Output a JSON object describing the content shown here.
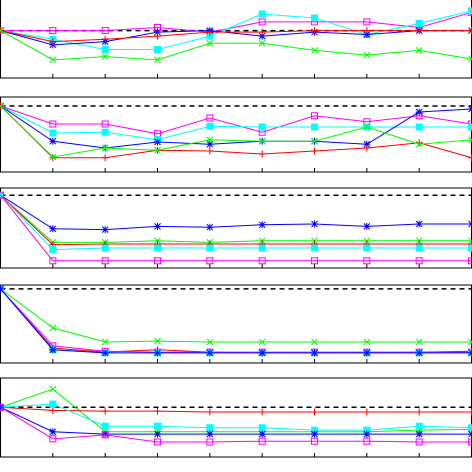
{
  "chart_data": [
    {
      "type": "line",
      "xlim": [
        0,
        9
      ],
      "ylim": [
        0,
        1
      ],
      "x": [
        0,
        1,
        2,
        3,
        4,
        5,
        6,
        7,
        8,
        9
      ],
      "xticks": [
        1,
        2,
        3,
        4,
        5,
        6,
        7,
        8
      ],
      "series": [
        {
          "color": "#000000",
          "dashed": true,
          "marker": "none",
          "values": [
            0.6,
            0.6,
            0.6,
            0.6,
            0.6,
            0.6,
            0.6,
            0.6,
            0.6,
            0.6
          ]
        },
        {
          "color": "#ff00ff",
          "marker": "square-open",
          "values": [
            0.6,
            0.6,
            0.6,
            0.64,
            0.58,
            0.71,
            0.71,
            0.71,
            0.64,
            0.83
          ]
        },
        {
          "color": "#00ffff",
          "marker": "square-filled",
          "values": [
            0.6,
            0.49,
            0.36,
            0.36,
            0.53,
            0.81,
            0.76,
            0.55,
            0.69,
            0.85
          ]
        },
        {
          "color": "#0000ff",
          "marker": "star",
          "values": [
            0.6,
            0.42,
            0.46,
            0.58,
            0.6,
            0.53,
            0.58,
            0.55,
            0.6,
            0.6
          ]
        },
        {
          "color": "#ff0000",
          "marker": "plus",
          "values": [
            0.6,
            0.46,
            0.49,
            0.53,
            0.58,
            0.58,
            0.6,
            0.6,
            0.6,
            0.6
          ]
        },
        {
          "color": "#00ff00",
          "marker": "cross",
          "values": [
            0.6,
            0.23,
            0.27,
            0.23,
            0.44,
            0.44,
            0.35,
            0.29,
            0.35,
            0.24
          ]
        }
      ]
    },
    {
      "type": "line",
      "xlim": [
        0,
        9
      ],
      "ylim": [
        0,
        1
      ],
      "x": [
        0,
        1,
        2,
        3,
        4,
        5,
        6,
        7,
        8,
        9
      ],
      "xticks": [
        1,
        2,
        3,
        4,
        5,
        6,
        7,
        8
      ],
      "series": [
        {
          "color": "#000000",
          "dashed": true,
          "marker": "none",
          "values": [
            0.88,
            0.88,
            0.88,
            0.88,
            0.88,
            0.88,
            0.88,
            0.88,
            0.88,
            0.88
          ]
        },
        {
          "color": "#ff00ff",
          "marker": "square-open",
          "values": [
            0.88,
            0.64,
            0.64,
            0.51,
            0.72,
            0.53,
            0.75,
            0.67,
            0.75,
            0.64
          ]
        },
        {
          "color": "#00ffff",
          "marker": "square-filled",
          "values": [
            0.88,
            0.52,
            0.53,
            0.43,
            0.61,
            0.6,
            0.6,
            0.6,
            0.6,
            0.6
          ]
        },
        {
          "color": "#0000ff",
          "marker": "star",
          "values": [
            0.88,
            0.41,
            0.32,
            0.4,
            0.37,
            0.41,
            0.41,
            0.37,
            0.8,
            0.84
          ]
        },
        {
          "color": "#ff0000",
          "marker": "plus",
          "values": [
            0.88,
            0.19,
            0.19,
            0.29,
            0.28,
            0.24,
            0.28,
            0.32,
            0.39,
            0.19
          ]
        },
        {
          "color": "#00ff00",
          "marker": "cross",
          "values": [
            0.88,
            0.2,
            0.32,
            0.29,
            0.43,
            0.41,
            0.41,
            0.6,
            0.37,
            0.43
          ]
        }
      ]
    },
    {
      "type": "line",
      "xlim": [
        0,
        9
      ],
      "ylim": [
        0,
        1
      ],
      "x": [
        0,
        1,
        2,
        3,
        4,
        5,
        6,
        7,
        8,
        9
      ],
      "xticks": [
        1,
        2,
        3,
        4,
        5,
        6,
        7,
        8
      ],
      "series": [
        {
          "color": "#000000",
          "dashed": true,
          "marker": "none",
          "values": [
            0.91,
            0.91,
            0.91,
            0.91,
            0.91,
            0.91,
            0.91,
            0.91,
            0.91,
            0.91
          ]
        },
        {
          "color": "#0000ff",
          "marker": "star",
          "values": [
            0.91,
            0.49,
            0.48,
            0.52,
            0.51,
            0.54,
            0.55,
            0.52,
            0.55,
            0.55
          ]
        },
        {
          "color": "#00ff00",
          "marker": "cross",
          "values": [
            0.91,
            0.32,
            0.32,
            0.34,
            0.32,
            0.34,
            0.34,
            0.34,
            0.34,
            0.34
          ]
        },
        {
          "color": "#ff0000",
          "marker": "plus",
          "values": [
            0.91,
            0.29,
            0.3,
            0.3,
            0.3,
            0.3,
            0.3,
            0.3,
            0.3,
            0.3
          ]
        },
        {
          "color": "#00ffff",
          "marker": "square-filled",
          "values": [
            0.91,
            0.23,
            0.25,
            0.25,
            0.25,
            0.25,
            0.25,
            0.25,
            0.25,
            0.25
          ]
        },
        {
          "color": "#ff00ff",
          "marker": "square-open",
          "values": [
            0.91,
            0.09,
            0.09,
            0.09,
            0.09,
            0.09,
            0.09,
            0.09,
            0.09,
            0.09
          ]
        }
      ]
    },
    {
      "type": "line",
      "xlim": [
        0,
        9
      ],
      "ylim": [
        0,
        1
      ],
      "x": [
        0,
        1,
        2,
        3,
        4,
        5,
        6,
        7,
        8,
        9
      ],
      "xticks": [
        1,
        2,
        3,
        4,
        5,
        6,
        7,
        8
      ],
      "series": [
        {
          "color": "#000000",
          "dashed": true,
          "marker": "none",
          "values": [
            0.95,
            0.95,
            0.95,
            0.95,
            0.95,
            0.95,
            0.95,
            0.95,
            0.95,
            0.95
          ]
        },
        {
          "color": "#00ff00",
          "marker": "cross",
          "values": [
            0.95,
            0.45,
            0.27,
            0.28,
            0.27,
            0.27,
            0.27,
            0.27,
            0.27,
            0.27
          ]
        },
        {
          "color": "#ff0000",
          "marker": "plus",
          "values": [
            0.95,
            0.19,
            0.14,
            0.17,
            0.14,
            0.13,
            0.13,
            0.13,
            0.14,
            0.15
          ]
        },
        {
          "color": "#ff00ff",
          "marker": "square-open",
          "values": [
            0.95,
            0.22,
            0.15,
            0.14,
            0.14,
            0.14,
            0.14,
            0.14,
            0.14,
            0.14
          ]
        },
        {
          "color": "#00ffff",
          "marker": "square-filled",
          "values": [
            0.95,
            0.17,
            0.13,
            0.13,
            0.13,
            0.13,
            0.13,
            0.13,
            0.13,
            0.13
          ]
        },
        {
          "color": "#0000ff",
          "marker": "star",
          "values": [
            0.95,
            0.17,
            0.13,
            0.13,
            0.13,
            0.13,
            0.13,
            0.13,
            0.13,
            0.13
          ]
        }
      ]
    },
    {
      "type": "line",
      "xlim": [
        0,
        9
      ],
      "ylim": [
        0,
        1
      ],
      "x": [
        0,
        1,
        2,
        3,
        4,
        5,
        6,
        7,
        8,
        9
      ],
      "xticks": [
        1,
        2,
        3,
        4,
        5,
        6,
        7,
        8
      ],
      "series": [
        {
          "color": "#000000",
          "dashed": true,
          "marker": "none",
          "values": [
            0.63,
            0.63,
            0.63,
            0.63,
            0.63,
            0.63,
            0.63,
            0.63,
            0.63,
            0.63
          ]
        },
        {
          "color": "#00ff00",
          "marker": "cross",
          "values": [
            0.63,
            0.86,
            0.32,
            0.32,
            0.32,
            0.32,
            0.32,
            0.32,
            0.34,
            0.35
          ]
        },
        {
          "color": "#ff0000",
          "marker": "plus",
          "values": [
            0.63,
            0.59,
            0.58,
            0.58,
            0.57,
            0.57,
            0.57,
            0.57,
            0.57,
            0.57
          ]
        },
        {
          "color": "#00ffff",
          "marker": "square-filled",
          "values": [
            0.63,
            0.67,
            0.39,
            0.39,
            0.37,
            0.37,
            0.34,
            0.34,
            0.39,
            0.37
          ]
        },
        {
          "color": "#0000ff",
          "marker": "star",
          "values": [
            0.63,
            0.32,
            0.29,
            0.29,
            0.29,
            0.29,
            0.29,
            0.29,
            0.29,
            0.29
          ]
        },
        {
          "color": "#ff00ff",
          "marker": "square-open",
          "values": [
            0.63,
            0.23,
            0.28,
            0.19,
            0.19,
            0.2,
            0.2,
            0.2,
            0.19,
            0.19
          ]
        }
      ]
    }
  ]
}
